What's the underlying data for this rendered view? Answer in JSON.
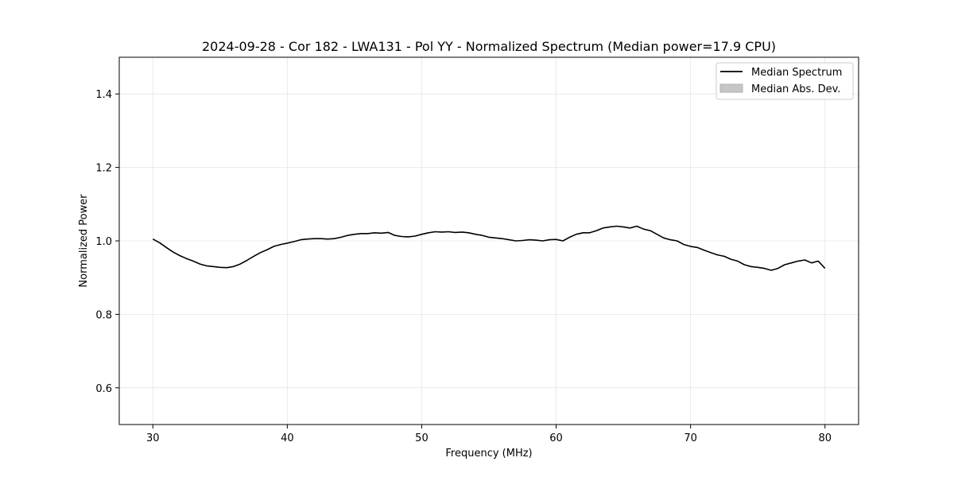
{
  "chart_data": {
    "type": "line",
    "title": "2024-09-28 - Cor 182 - LWA131 - Pol YY - Normalized Spectrum (Median power=17.9 CPU)",
    "xlabel": "Frequency (MHz)",
    "ylabel": "Normalized Power",
    "xlim": [
      27.5,
      82.5
    ],
    "ylim": [
      0.5,
      1.5
    ],
    "xticks": [
      30,
      40,
      50,
      60,
      70,
      80
    ],
    "yticks": [
      0.6,
      0.8,
      1.0,
      1.2,
      1.4
    ],
    "xtick_labels": [
      "30",
      "40",
      "50",
      "60",
      "70",
      "80"
    ],
    "ytick_labels": [
      "0.6",
      "0.8",
      "1.0",
      "1.2",
      "1.4"
    ],
    "grid": true,
    "legend_position": "top-right",
    "legend": [
      "Median Spectrum",
      "Median Abs. Dev."
    ],
    "series": [
      {
        "name": "Median Spectrum",
        "color": "#000000",
        "x": [
          30,
          30.5,
          31,
          31.5,
          32,
          32.5,
          33,
          33.5,
          34,
          34.5,
          35,
          35.5,
          36,
          36.5,
          37,
          37.5,
          38,
          38.5,
          39,
          39.5,
          40,
          40.5,
          41,
          41.5,
          42,
          42.5,
          43,
          43.5,
          44,
          44.5,
          45,
          45.5,
          46,
          46.5,
          47,
          47.5,
          48,
          48.5,
          49,
          49.5,
          50,
          50.5,
          51,
          51.5,
          52,
          52.5,
          53,
          53.5,
          54,
          54.5,
          55,
          55.5,
          56,
          56.5,
          57,
          57.5,
          58,
          58.5,
          59,
          59.5,
          60,
          60.5,
          61,
          61.5,
          62,
          62.5,
          63,
          63.5,
          64,
          64.5,
          65,
          65.5,
          66,
          66.5,
          67,
          67.5,
          68,
          68.5,
          69,
          69.5,
          70,
          70.5,
          71,
          71.5,
          72,
          72.5,
          73,
          73.5,
          74,
          74.5,
          75,
          75.5,
          76,
          76.5,
          77,
          77.5,
          78,
          78.5,
          79,
          79.5,
          80
        ],
        "values": [
          1.005,
          0.995,
          0.982,
          0.97,
          0.96,
          0.952,
          0.945,
          0.937,
          0.932,
          0.93,
          0.928,
          0.927,
          0.93,
          0.937,
          0.947,
          0.958,
          0.968,
          0.976,
          0.985,
          0.99,
          0.994,
          0.998,
          1.003,
          1.005,
          1.006,
          1.006,
          1.005,
          1.006,
          1.01,
          1.015,
          1.018,
          1.02,
          1.02,
          1.022,
          1.021,
          1.023,
          1.015,
          1.012,
          1.011,
          1.013,
          1.018,
          1.022,
          1.025,
          1.024,
          1.025,
          1.023,
          1.024,
          1.022,
          1.018,
          1.015,
          1.01,
          1.008,
          1.006,
          1.003,
          1.0,
          1.001,
          1.003,
          1.002,
          1.0,
          1.003,
          1.004,
          1.0,
          1.01,
          1.018,
          1.022,
          1.022,
          1.028,
          1.035,
          1.038,
          1.04,
          1.038,
          1.035,
          1.04,
          1.032,
          1.028,
          1.018,
          1.008,
          1.003,
          1.0,
          0.99,
          0.985,
          0.982,
          0.975,
          0.968,
          0.962,
          0.958,
          0.95,
          0.945,
          0.935,
          0.93,
          0.928,
          0.925,
          0.92,
          0.925,
          0.935,
          0.94,
          0.945,
          0.948,
          0.94,
          0.945,
          0.925
        ]
      }
    ]
  }
}
